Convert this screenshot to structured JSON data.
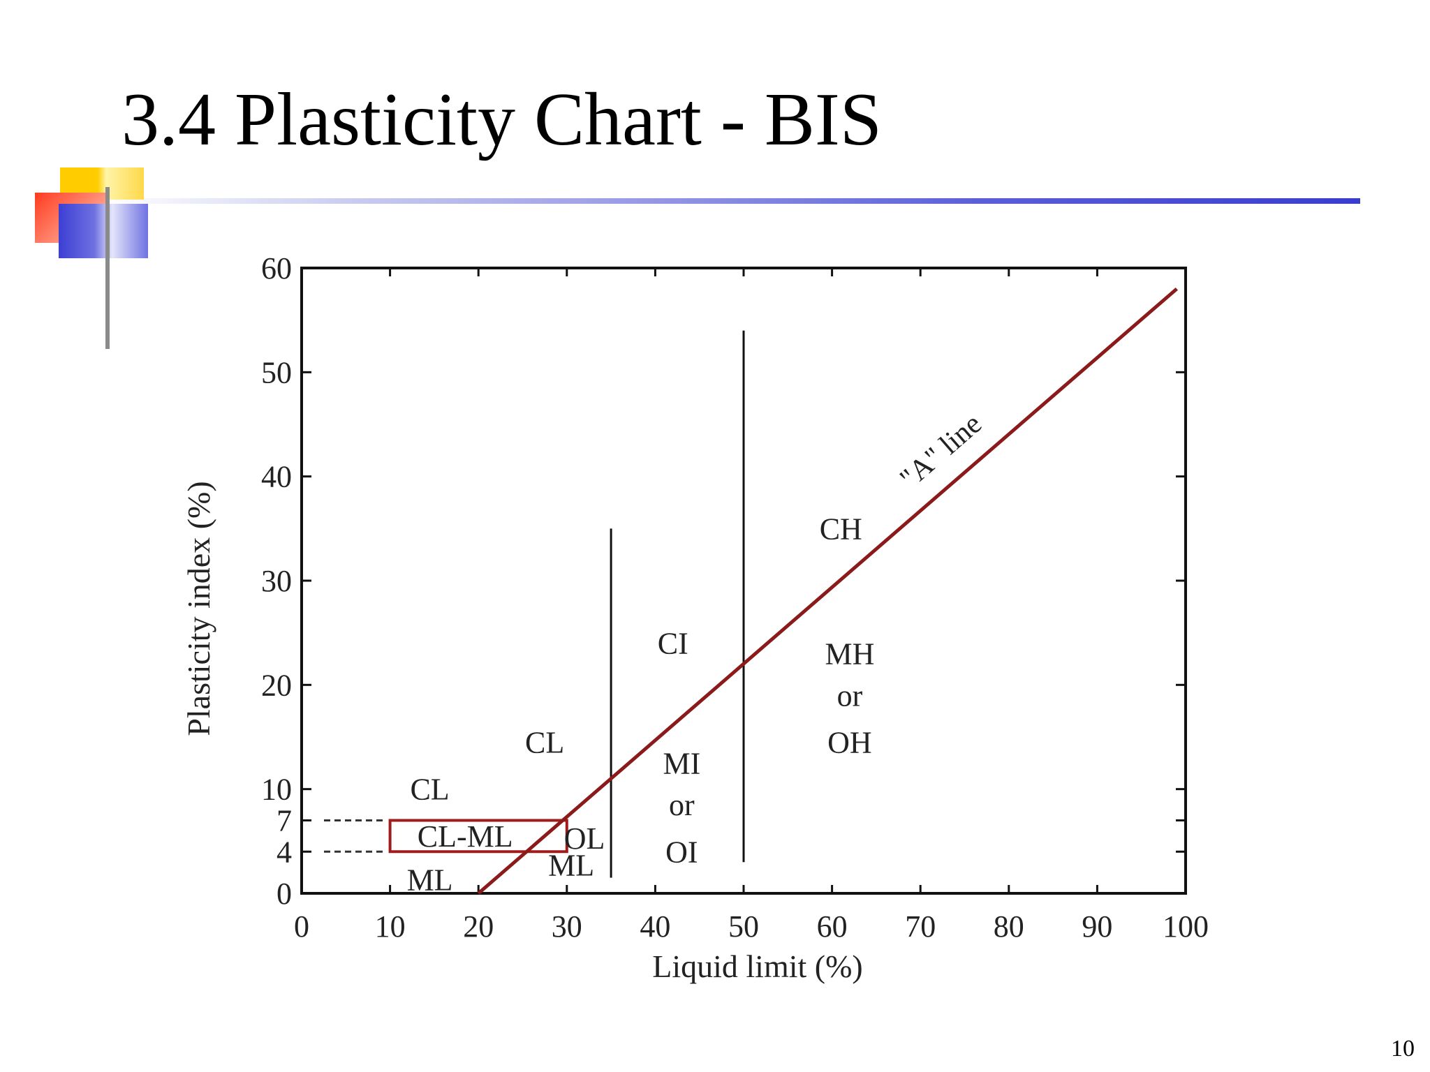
{
  "slide": {
    "title": "3.4 Plasticity Chart - BIS",
    "page_number": "10"
  },
  "colors": {
    "a_line": "#8b1a1a",
    "cl_ml_box": "#a01c1c",
    "axis": "#111111",
    "title_rule": "#3a3ccf"
  },
  "chart_data": {
    "type": "line",
    "xlabel": "Liquid limit (%)",
    "ylabel": "Plasticity index (%)",
    "xlim": [
      0,
      100
    ],
    "ylim": [
      0,
      60
    ],
    "xticks": [
      0,
      10,
      20,
      30,
      40,
      50,
      60,
      70,
      80,
      90,
      100
    ],
    "yticks": [
      0,
      4,
      7,
      10,
      20,
      30,
      40,
      50,
      60
    ],
    "grid": false,
    "series": [
      {
        "name": "\"A\" line",
        "x": [
          20,
          99
        ],
        "y": [
          0,
          58
        ]
      }
    ],
    "boundaries": [
      {
        "x": 35,
        "y": [
          1.5,
          35
        ]
      },
      {
        "x": 50,
        "y": [
          3,
          54
        ]
      }
    ],
    "dashed_levels": [
      7,
      4
    ],
    "cl_ml_zone": {
      "x": [
        10,
        30
      ],
      "y": [
        4,
        7
      ]
    },
    "zones": [
      {
        "label": "CH",
        "x": 61,
        "y": 35
      },
      {
        "label": "CI",
        "x": 42,
        "y": 24
      },
      {
        "label": "MH",
        "x": 62,
        "y": 23
      },
      {
        "label": "or",
        "x": 62,
        "y": 19
      },
      {
        "label": "OH",
        "x": 62,
        "y": 14.5
      },
      {
        "label": "CL",
        "x": 27.5,
        "y": 14.5
      },
      {
        "label": "MI",
        "x": 43,
        "y": 12.5
      },
      {
        "label": "or",
        "x": 43,
        "y": 8.5
      },
      {
        "label": "OI",
        "x": 43,
        "y": 4
      },
      {
        "label": "CL",
        "x": 14.5,
        "y": 10
      },
      {
        "label": "CL-ML",
        "x": 18.5,
        "y": 5.5
      },
      {
        "label": "OL",
        "x": 32,
        "y": 5.3
      },
      {
        "label": "ML",
        "x": 30.5,
        "y": 2.7
      },
      {
        "label": "ML",
        "x": 14.5,
        "y": 1.3
      }
    ]
  }
}
